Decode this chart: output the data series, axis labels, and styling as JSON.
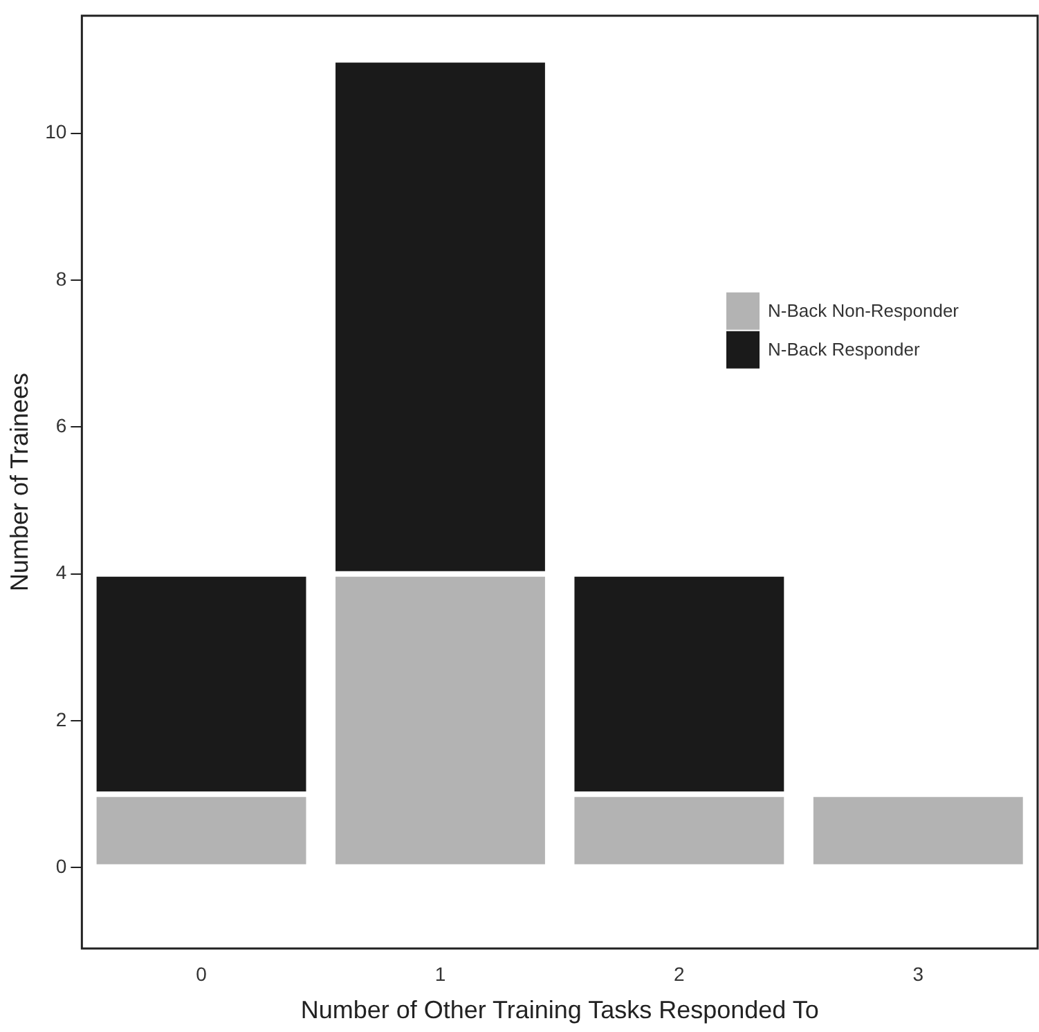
{
  "chart_data": {
    "type": "bar",
    "stacked": true,
    "xlabel": "Number of Other Training Tasks Responded To",
    "ylabel": "Number of Trainees",
    "categories": [
      "0",
      "1",
      "2",
      "3"
    ],
    "series": [
      {
        "name": "N-Back Non-Responder",
        "color": "#b3b3b3",
        "values": [
          1,
          4,
          1,
          1
        ]
      },
      {
        "name": "N-Back Responder",
        "color": "#1a1a1a",
        "values": [
          3,
          7,
          3,
          0
        ]
      }
    ],
    "ylim": [
      -1.1,
      11.6
    ],
    "yticks": [
      0,
      2,
      4,
      6,
      8,
      10
    ],
    "grid": false,
    "legend": "top right"
  }
}
